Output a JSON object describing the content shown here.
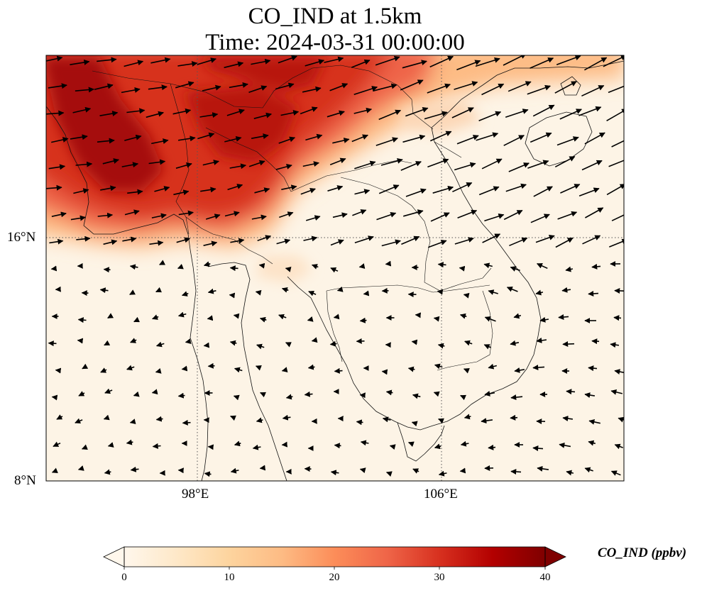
{
  "title": {
    "line1": "CO_IND at 1.5km",
    "line2": "Time: 2024-03-31 00:00:00"
  },
  "map": {
    "variable": "CO_IND",
    "level": "1.5km",
    "time": "2024-03-31 00:00:00",
    "lon_range": [
      91.8,
      113.5
    ],
    "lat_range": [
      8,
      22.5
    ],
    "lon_ticks": [
      "98°E",
      "106°E"
    ],
    "lat_ticks": [
      "16°N",
      "8°N"
    ],
    "gridlines": true,
    "features": [
      "coastlines",
      "country borders",
      "wind vectors"
    ],
    "high_concentration_region": "northern Myanmar, northern Thailand, northern Laos and southern China (about 17–22.5°N); near zero south of 15°N"
  },
  "colorbar": {
    "label": "CO_IND (ppbv)",
    "ticks": [
      "0",
      "10",
      "20",
      "30",
      "40"
    ],
    "min": 0,
    "max": 40,
    "colormap": "OrRd",
    "extend": "both",
    "colors": [
      "#fff7ec",
      "#fee8c8",
      "#fdd49e",
      "#fdbb84",
      "#fc8d59",
      "#ef6548",
      "#d7301f",
      "#b30000",
      "#7f0000"
    ]
  }
}
